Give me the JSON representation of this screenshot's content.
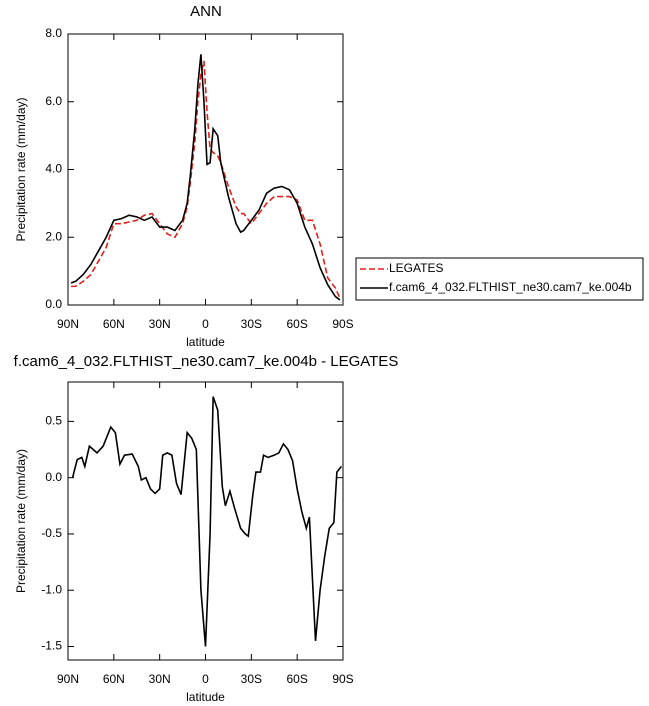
{
  "chart_data": [
    {
      "type": "line",
      "title": "ANN",
      "xlabel": "latitude",
      "ylabel": "Precipitation rate (mm/day)",
      "x": [
        88,
        85,
        80,
        75,
        70,
        65,
        60,
        55,
        50,
        45,
        40,
        35,
        30,
        25,
        20,
        15,
        12,
        10,
        7,
        5,
        3,
        1,
        -1,
        -3,
        -5,
        -8,
        -10,
        -15,
        -20,
        -23,
        -25,
        -30,
        -35,
        -40,
        -45,
        -50,
        -55,
        -60,
        -65,
        -70,
        -75,
        -80,
        -85,
        -88
      ],
      "series": [
        {
          "name": "LEGATES",
          "color": "#e0201b",
          "line_style": "dashed",
          "values": [
            0.55,
            0.55,
            0.7,
            0.9,
            1.3,
            1.7,
            2.4,
            2.4,
            2.45,
            2.5,
            2.65,
            2.7,
            2.4,
            2.1,
            2.0,
            2.4,
            2.9,
            3.6,
            4.8,
            6.0,
            6.8,
            7.2,
            5.7,
            4.6,
            4.5,
            4.4,
            4.2,
            3.5,
            2.9,
            2.7,
            2.7,
            2.4,
            2.7,
            3.0,
            3.2,
            3.2,
            3.2,
            3.1,
            2.5,
            2.5,
            1.8,
            0.8,
            0.5,
            0.2
          ]
        },
        {
          "name": "f.cam6_4_032.FLTHIST_ne30.cam7_ke.004b",
          "color": "#000000",
          "line_style": "solid",
          "values": [
            0.65,
            0.7,
            0.9,
            1.2,
            1.6,
            2.0,
            2.5,
            2.55,
            2.65,
            2.6,
            2.5,
            2.6,
            2.3,
            2.3,
            2.2,
            2.5,
            3.0,
            3.8,
            5.2,
            6.5,
            7.4,
            6.0,
            4.15,
            4.2,
            5.2,
            5.0,
            4.2,
            3.2,
            2.4,
            2.15,
            2.2,
            2.5,
            2.8,
            3.3,
            3.45,
            3.5,
            3.4,
            3.0,
            2.3,
            1.8,
            1.1,
            0.6,
            0.25,
            0.15
          ]
        }
      ],
      "xlim": [
        90,
        -90
      ],
      "xticks": [
        {
          "value": 90,
          "label": "90N"
        },
        {
          "value": 60,
          "label": "60N"
        },
        {
          "value": 30,
          "label": "30N"
        },
        0,
        {
          "value": -30,
          "label": "30S"
        },
        {
          "value": -60,
          "label": "60S"
        },
        {
          "value": -90,
          "label": "90S"
        }
      ],
      "ylim": [
        0,
        8
      ],
      "yticks": [
        {
          "value": 0,
          "label": "0.0"
        },
        {
          "value": 2,
          "label": "2.0"
        },
        {
          "value": 4,
          "label": "4.0"
        },
        {
          "value": 6,
          "label": "6.0"
        },
        {
          "value": 8,
          "label": "8.0"
        }
      ],
      "legend": "right"
    },
    {
      "type": "line",
      "title": "f.cam6_4_032.FLTHIST_ne30.cam7_ke.004b - LEGATES",
      "xlabel": "latitude",
      "ylabel": "Precipitation rate (mm/day)",
      "x": [
        87,
        84,
        81,
        79,
        76,
        71,
        67,
        62,
        59,
        56,
        53,
        48,
        44,
        42,
        39,
        36,
        33,
        30,
        28,
        25,
        22,
        19,
        16,
        12,
        9,
        6,
        3,
        0,
        -3,
        -5,
        -8,
        -11,
        -13,
        -16,
        -19,
        -23,
        -26,
        -28,
        -31,
        -33,
        -36,
        -38,
        -41,
        -45,
        -48,
        -51,
        -54,
        -57,
        -60,
        -63,
        -66,
        -68,
        -72,
        -75,
        -78,
        -81,
        -84,
        -86,
        -89
      ],
      "series": [
        {
          "color": "#000000",
          "line_style": "solid",
          "values": [
            0.0,
            0.16,
            0.18,
            0.1,
            0.28,
            0.22,
            0.28,
            0.45,
            0.4,
            0.12,
            0.2,
            0.21,
            0.1,
            -0.02,
            0.0,
            -0.1,
            -0.14,
            -0.1,
            0.2,
            0.22,
            0.2,
            -0.05,
            -0.15,
            0.4,
            0.35,
            0.25,
            -1.0,
            -1.5,
            -0.5,
            0.72,
            0.6,
            -0.08,
            -0.25,
            -0.12,
            -0.27,
            -0.45,
            -0.5,
            -0.52,
            -0.15,
            0.05,
            0.05,
            0.2,
            0.18,
            0.2,
            0.22,
            0.3,
            0.25,
            0.15,
            -0.1,
            -0.3,
            -0.45,
            -0.35,
            -1.45,
            -1.0,
            -0.7,
            -0.45,
            -0.4,
            0.05,
            0.1
          ]
        }
      ],
      "xlim": [
        90,
        -90
      ],
      "xticks": [
        {
          "value": 90,
          "label": "90N"
        },
        {
          "value": 60,
          "label": "60N"
        },
        {
          "value": 30,
          "label": "30N"
        },
        0,
        {
          "value": -30,
          "label": "30S"
        },
        {
          "value": -60,
          "label": "60S"
        },
        {
          "value": -90,
          "label": "90S"
        }
      ],
      "ylim": [
        -1.62,
        0.85
      ],
      "yticks": [
        0.5,
        {
          "value": 0,
          "label": "0.0"
        },
        -0.5,
        {
          "value": -1,
          "label": "-1.0"
        },
        -1.5
      ]
    }
  ]
}
